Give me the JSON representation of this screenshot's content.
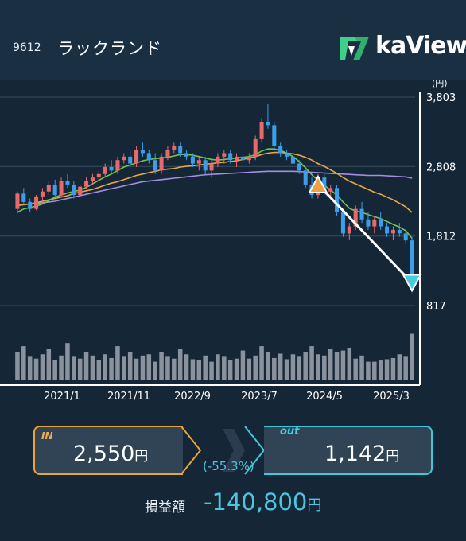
{
  "header": {
    "code": "9612",
    "name": "ラックランド",
    "logo_text": "kaView"
  },
  "chart_data": {
    "type": "candlestick",
    "y_unit": "(円)",
    "y_ticks": [
      "3,803",
      "2,808",
      "1,812",
      "817"
    ],
    "y_tick_values": [
      3803,
      2808,
      1812,
      817
    ],
    "ylim": [
      817,
      3803
    ],
    "x_ticks": [
      "2021/1",
      "2021/11",
      "2022/9",
      "2023/7",
      "2024/5",
      "2025/3"
    ],
    "grid": true,
    "colors": {
      "up": "#e8696b",
      "down": "#3b9ee8",
      "volume": "#8a939d",
      "ma_short": "#71c653",
      "ma_mid": "#e6a74a",
      "ma_long": "#a48ee0",
      "trade_line": "#ffffff",
      "buy_marker": "#f0a040",
      "sell_marker": "#46cbe0"
    },
    "candles": [
      [
        2200,
        2450,
        2150,
        2420
      ],
      [
        2420,
        2500,
        2250,
        2300
      ],
      [
        2300,
        2350,
        2150,
        2200
      ],
      [
        2200,
        2400,
        2180,
        2380
      ],
      [
        2380,
        2500,
        2300,
        2450
      ],
      [
        2450,
        2600,
        2400,
        2550
      ],
      [
        2550,
        2620,
        2380,
        2400
      ],
      [
        2400,
        2650,
        2380,
        2600
      ],
      [
        2600,
        2700,
        2500,
        2550
      ],
      [
        2550,
        2600,
        2350,
        2400
      ],
      [
        2400,
        2550,
        2380,
        2520
      ],
      [
        2520,
        2650,
        2480,
        2600
      ],
      [
        2600,
        2700,
        2550,
        2650
      ],
      [
        2650,
        2750,
        2600,
        2700
      ],
      [
        2700,
        2850,
        2650,
        2800
      ],
      [
        2800,
        2900,
        2700,
        2750
      ],
      [
        2750,
        2950,
        2700,
        2900
      ],
      [
        2900,
        3000,
        2850,
        2950
      ],
      [
        2950,
        3050,
        2800,
        2850
      ],
      [
        2850,
        3100,
        2800,
        3050
      ],
      [
        3050,
        3150,
        2950,
        3000
      ],
      [
        3000,
        3050,
        2850,
        2900
      ],
      [
        2900,
        3000,
        2700,
        2750
      ],
      [
        2750,
        3000,
        2700,
        2950
      ],
      [
        2950,
        3100,
        2900,
        3050
      ],
      [
        3050,
        3150,
        3000,
        3100
      ],
      [
        3100,
        3150,
        2950,
        3000
      ],
      [
        3000,
        3050,
        2900,
        2950
      ],
      [
        2950,
        3000,
        2800,
        2850
      ],
      [
        2850,
        2950,
        2750,
        2900
      ],
      [
        2900,
        2950,
        2700,
        2750
      ],
      [
        2750,
        2900,
        2650,
        2850
      ],
      [
        2850,
        3000,
        2800,
        2950
      ],
      [
        2950,
        3050,
        2850,
        3000
      ],
      [
        3000,
        3050,
        2850,
        2900
      ],
      [
        2900,
        3000,
        2800,
        2950
      ],
      [
        2950,
        3000,
        2850,
        2900
      ],
      [
        2900,
        3000,
        2850,
        2950
      ],
      [
        2950,
        3250,
        2900,
        3200
      ],
      [
        3200,
        3500,
        3150,
        3450
      ],
      [
        3450,
        3700,
        3350,
        3400
      ],
      [
        3400,
        3450,
        3050,
        3100
      ],
      [
        3100,
        3150,
        2950,
        3000
      ],
      [
        3000,
        3050,
        2900,
        2950
      ],
      [
        2950,
        3000,
        2800,
        2850
      ],
      [
        2850,
        2900,
        2700,
        2750
      ],
      [
        2750,
        2800,
        2500,
        2550
      ],
      [
        2550,
        2650,
        2350,
        2400
      ],
      [
        2400,
        2700,
        2350,
        2650
      ],
      [
        2650,
        2700,
        2400,
        2450
      ],
      [
        2450,
        2550,
        2350,
        2500
      ],
      [
        2500,
        2550,
        2100,
        2150
      ],
      [
        2150,
        2200,
        1800,
        1850
      ],
      [
        1850,
        2000,
        1750,
        1950
      ],
      [
        1950,
        2250,
        1900,
        2200
      ],
      [
        2200,
        2300,
        2000,
        2050
      ],
      [
        2050,
        2150,
        1900,
        1950
      ],
      [
        1950,
        2100,
        1850,
        2050
      ],
      [
        2050,
        2150,
        1900,
        1950
      ],
      [
        1950,
        2000,
        1800,
        1850
      ],
      [
        1850,
        1950,
        1750,
        1900
      ],
      [
        1900,
        2000,
        1800,
        1850
      ],
      [
        1850,
        1900,
        1700,
        1750
      ],
      [
        1750,
        1800,
        1100,
        1142
      ]
    ],
    "ma_short": [
      2150,
      2200,
      2220,
      2240,
      2270,
      2320,
      2370,
      2400,
      2430,
      2450,
      2470,
      2510,
      2560,
      2610,
      2660,
      2700,
      2750,
      2800,
      2830,
      2860,
      2890,
      2910,
      2920,
      2930,
      2940,
      2960,
      2980,
      2980,
      2970,
      2950,
      2930,
      2910,
      2900,
      2910,
      2920,
      2930,
      2940,
      2950,
      2980,
      3030,
      3060,
      3060,
      3040,
      3000,
      2950,
      2880,
      2790,
      2690,
      2610,
      2540,
      2470,
      2400,
      2300,
      2210,
      2170,
      2150,
      2120,
      2090,
      2060,
      2020,
      1980,
      1940,
      1890,
      1780
    ],
    "ma_mid": [
      2250,
      2260,
      2270,
      2290,
      2310,
      2330,
      2350,
      2370,
      2390,
      2420,
      2440,
      2460,
      2480,
      2510,
      2540,
      2570,
      2590,
      2620,
      2650,
      2680,
      2700,
      2720,
      2740,
      2760,
      2770,
      2780,
      2800,
      2810,
      2820,
      2830,
      2840,
      2850,
      2860,
      2870,
      2880,
      2890,
      2910,
      2930,
      2950,
      2980,
      3000,
      3010,
      3010,
      3000,
      2990,
      2970,
      2940,
      2900,
      2850,
      2810,
      2760,
      2710,
      2650,
      2600,
      2560,
      2520,
      2480,
      2440,
      2410,
      2370,
      2330,
      2280,
      2230,
      2150
    ],
    "ma_long": [
      2260,
      2265,
      2270,
      2280,
      2290,
      2300,
      2310,
      2330,
      2350,
      2370,
      2390,
      2410,
      2430,
      2450,
      2470,
      2490,
      2510,
      2530,
      2550,
      2570,
      2590,
      2600,
      2610,
      2620,
      2630,
      2640,
      2650,
      2660,
      2670,
      2680,
      2690,
      2695,
      2700,
      2705,
      2710,
      2715,
      2720,
      2725,
      2730,
      2735,
      2740,
      2740,
      2740,
      2740,
      2740,
      2735,
      2730,
      2725,
      2720,
      2715,
      2710,
      2705,
      2700,
      2695,
      2690,
      2685,
      2680,
      2680,
      2680,
      2675,
      2670,
      2665,
      2660,
      2640
    ],
    "volume": [
      0.45,
      0.55,
      0.38,
      0.35,
      0.42,
      0.5,
      0.32,
      0.4,
      0.6,
      0.38,
      0.35,
      0.45,
      0.4,
      0.33,
      0.42,
      0.36,
      0.55,
      0.38,
      0.45,
      0.35,
      0.4,
      0.42,
      0.3,
      0.45,
      0.38,
      0.35,
      0.5,
      0.42,
      0.34,
      0.33,
      0.4,
      0.3,
      0.42,
      0.38,
      0.32,
      0.35,
      0.48,
      0.35,
      0.4,
      0.55,
      0.45,
      0.36,
      0.43,
      0.34,
      0.42,
      0.38,
      0.45,
      0.55,
      0.42,
      0.4,
      0.5,
      0.45,
      0.48,
      0.52,
      0.35,
      0.4,
      0.3,
      0.3,
      0.32,
      0.34,
      0.36,
      0.42,
      0.38,
      0.75
    ]
  },
  "trade": {
    "in_tag": "IN",
    "in_price": "2,550",
    "out_tag": "out",
    "out_price": "1,142",
    "yen": "円",
    "pct": "(-55.3%)",
    "pl_label": "損益額",
    "pl_value": "-140,800",
    "in_value": 2550,
    "out_value": 1142,
    "in_index": 48,
    "out_index": 63
  }
}
